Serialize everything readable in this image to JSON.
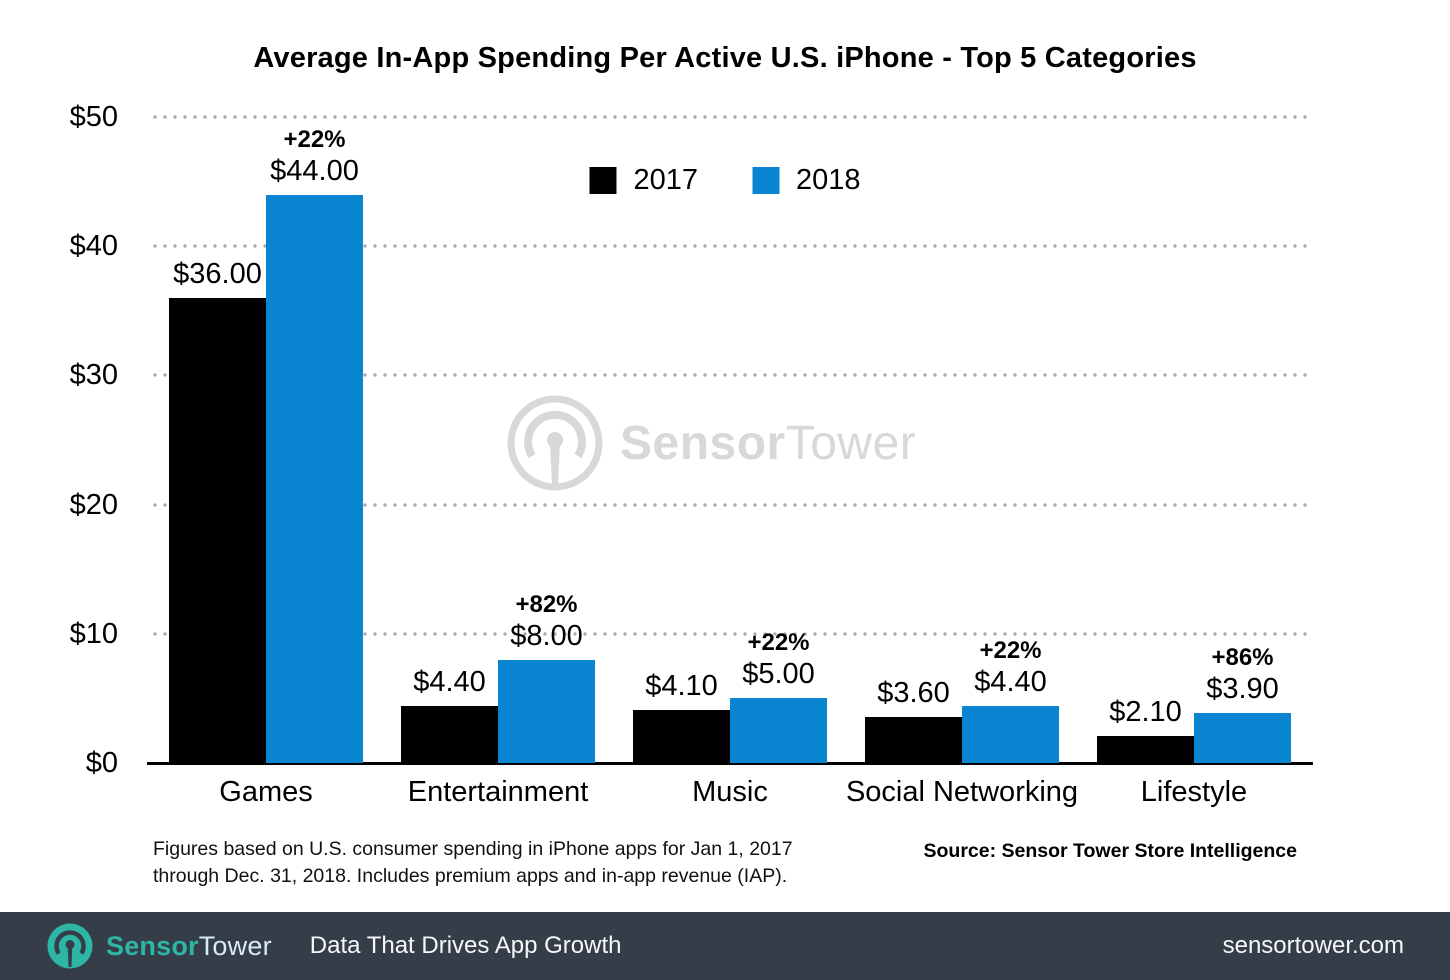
{
  "title": "Average In-App Spending Per Active U.S. iPhone - Top 5 Categories",
  "legend": {
    "items": [
      {
        "label": "2017",
        "color": "#000000"
      },
      {
        "label": "2018",
        "color": "#0884d1"
      }
    ]
  },
  "chart_data": {
    "type": "bar",
    "title": "Average In-App Spending Per Active U.S. iPhone - Top 5 Categories",
    "categories": [
      "Games",
      "Entertainment",
      "Music",
      "Social Networking",
      "Lifestyle"
    ],
    "series": [
      {
        "name": "2017",
        "color": "#000000",
        "values": [
          36.0,
          4.4,
          4.1,
          3.6,
          2.1
        ],
        "value_labels": [
          "$36.00",
          "$4.40",
          "$4.10",
          "$3.60",
          "$2.10"
        ]
      },
      {
        "name": "2018",
        "color": "#0884d1",
        "values": [
          44.0,
          8.0,
          5.0,
          4.4,
          3.9
        ],
        "value_labels": [
          "$44.00",
          "$8.00",
          "$5.00",
          "$4.40",
          "$3.90"
        ],
        "pct_change_labels": [
          "+22%",
          "+82%",
          "+22%",
          "+22%",
          "+86%"
        ]
      }
    ],
    "xlabel": "",
    "ylabel": "",
    "ylim": [
      0,
      50
    ],
    "yticks": [
      {
        "value": 0,
        "label": "$0"
      },
      {
        "value": 10,
        "label": "$10"
      },
      {
        "value": 20,
        "label": "$20"
      },
      {
        "value": 30,
        "label": "$30"
      },
      {
        "value": 40,
        "label": "$40"
      },
      {
        "value": 50,
        "label": "$50"
      }
    ],
    "grid": "horizontal dotted gray",
    "legend_position": "top center"
  },
  "watermark": {
    "brand_bold": "Sensor",
    "brand_light": "Tower"
  },
  "footnote": {
    "line1": "Figures based on U.S. consumer spending in iPhone apps for Jan 1, 2017",
    "line2": "through Dec. 31, 2018. Includes premium apps and in-app revenue (IAP)."
  },
  "source": "Source: Sensor Tower Store Intelligence",
  "footer": {
    "brand_bold": "Sensor",
    "brand_light": "Tower",
    "tagline": "Data That Drives App Growth",
    "url": "sensortower.com",
    "background": "#353d49",
    "teal": "#2db5a5"
  }
}
